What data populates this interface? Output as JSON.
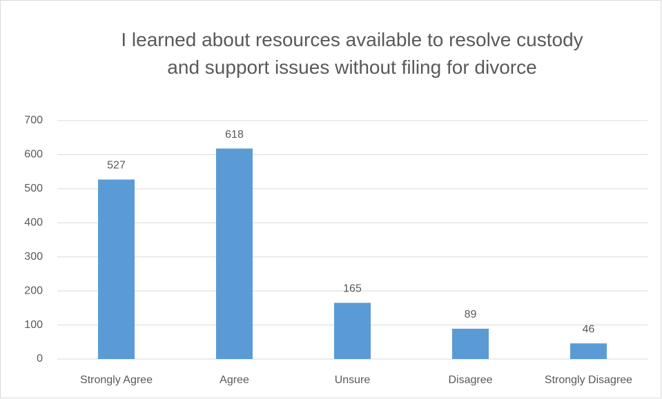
{
  "chart_data": {
    "type": "bar",
    "title": "I learned about resources available to resolve custody and support issues without filing for divorce",
    "categories": [
      "Strongly Agree",
      "Agree",
      "Unsure",
      "Disagree",
      "Strongly Disagree"
    ],
    "values": [
      527,
      618,
      165,
      89,
      46
    ],
    "color": "#5b9bd5",
    "ylim": [
      0,
      700
    ],
    "yticks": [
      0,
      100,
      200,
      300,
      400,
      500,
      600,
      700
    ],
    "grid": true
  }
}
